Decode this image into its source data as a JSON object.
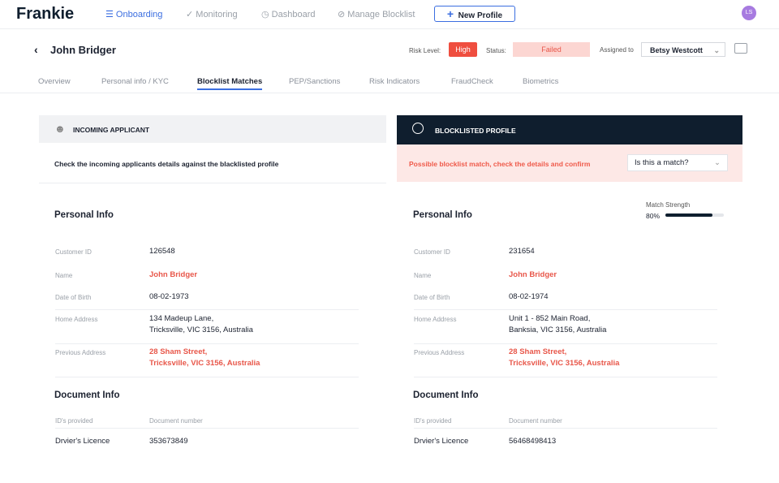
{
  "header": {
    "logo": "Frankie",
    "nav": [
      "Onboarding",
      "Monitoring",
      "Dashboard",
      "Manage Blocklist"
    ],
    "button": "New Profile",
    "avatar": "LS"
  },
  "profile": {
    "name": "John Bridger",
    "risk_label": "Risk Level:",
    "risk": "High",
    "status_label": "Status:",
    "status": "Failed",
    "assigned_label": "Assigned to",
    "assignee": "Betsy Westcott"
  },
  "tabs": [
    "Overview",
    "Personal info / KYC",
    "Blocklist Matches",
    "PEP/Sanctions",
    "Risk Indicators",
    "FraudCheck",
    "Biometrics"
  ],
  "incoming": {
    "title": "INCOMING APPLICANT",
    "note": "Check the incoming applicants details against the blacklisted profile"
  },
  "blocklisted": {
    "title": "BLOCKLISTED PROFILE",
    "warning": "Possible blocklist match, check the details and confirm",
    "select": "Is this a match?",
    "match_strength": {
      "label": "Match Strength",
      "value": 80,
      "value_label": "80%"
    }
  },
  "columns": [
    {
      "personal_title": "Personal Info",
      "fields": [
        {
          "label": "Customer ID",
          "value": [
            "126548"
          ]
        },
        {
          "label": "Name",
          "value": [
            "John Bridger"
          ],
          "color": "#e8574a"
        },
        {
          "label": "Date of Birth",
          "value": [
            "08-02-1973"
          ]
        },
        {
          "label": "Home Address",
          "value": [
            "134 Madeup Lane,",
            "Tricksville, VIC 3156, Australia"
          ]
        },
        {
          "label": "Previous Address",
          "value": [
            "28 Sham Street,",
            "Tricksville, VIC 3156, Australia"
          ],
          "color": "#e8574a"
        }
      ],
      "document_title": "Document Info",
      "doc_headers": [
        "ID's provided",
        "Document number"
      ],
      "doc_rows": [
        [
          "Drvier's Licence",
          "353673849"
        ]
      ]
    },
    {
      "personal_title": "Personal Info",
      "fields": [
        {
          "label": "Customer ID",
          "value": [
            "231654"
          ]
        },
        {
          "label": "Name",
          "value": [
            "John Bridger"
          ],
          "color": "#e8574a"
        },
        {
          "label": "Date of Birth",
          "value": [
            "08-02-1974"
          ]
        },
        {
          "label": "Home Address",
          "value": [
            "Unit 1 - 852 Main Road,",
            "Banksia, VIC 3156, Australia"
          ]
        },
        {
          "label": "Previous Address",
          "value": [
            "28 Sham Street,",
            "Tricksville, VIC 3156, Australia"
          ],
          "color": "#e8574a"
        }
      ],
      "document_title": "Document Info",
      "doc_headers": [
        "ID's provided",
        "Document number"
      ],
      "doc_rows": [
        [
          "Drvier's Licence",
          "56468498413"
        ]
      ]
    }
  ]
}
